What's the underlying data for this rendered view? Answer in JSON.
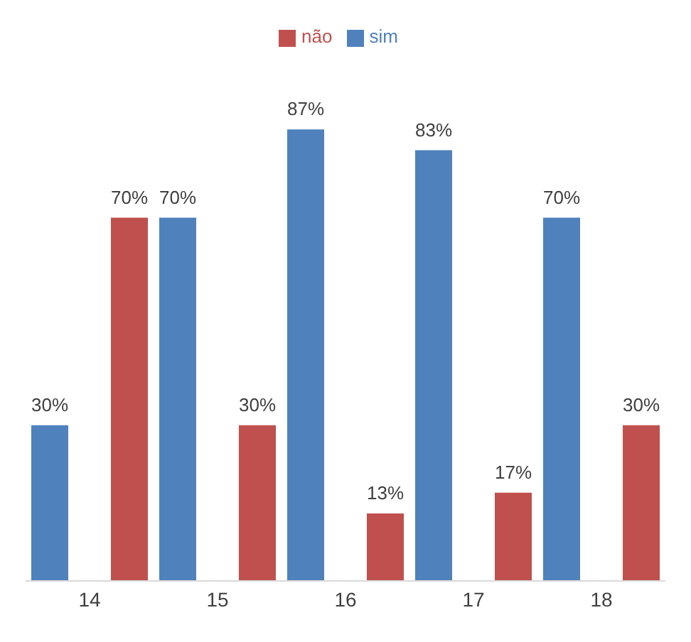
{
  "chart_data": {
    "type": "bar",
    "categories": [
      "14",
      "15",
      "16",
      "17",
      "18"
    ],
    "series": [
      {
        "name": "sim",
        "color": "#4f81bd",
        "values": [
          30,
          70,
          87,
          83,
          70
        ],
        "value_labels": [
          "30%",
          "70%",
          "87%",
          "83%",
          "70%"
        ]
      },
      {
        "name": "não",
        "color": "#c0504d",
        "values": [
          70,
          30,
          13,
          17,
          30
        ],
        "value_labels": [
          "70%",
          "30%",
          "13%",
          "17%",
          "30%"
        ]
      }
    ],
    "legend": "top",
    "grid": false,
    "tick_labels": "x"
  }
}
